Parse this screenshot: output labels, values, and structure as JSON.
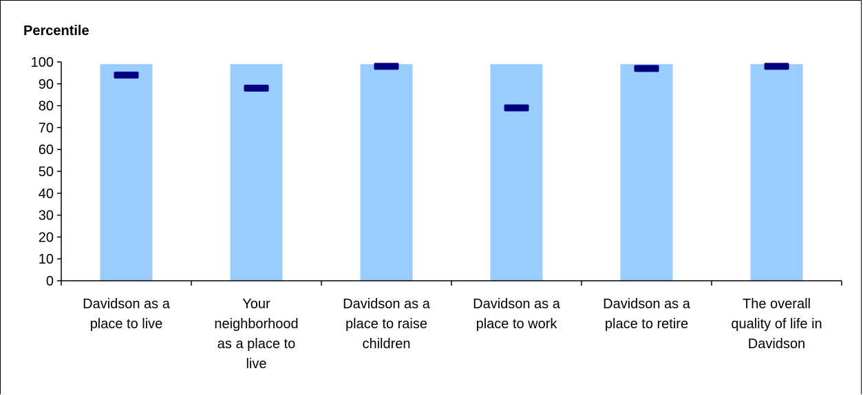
{
  "chart_data": {
    "type": "bar",
    "ylabel": "Percentile",
    "xlabel": "",
    "title": "",
    "ylim": [
      0,
      100
    ],
    "yticks": [
      "0",
      "10",
      "20",
      "30",
      "40",
      "50",
      "60",
      "70",
      "80",
      "90",
      "100"
    ],
    "categories": [
      [
        "Davidson as a",
        "place to live"
      ],
      [
        "Your",
        "neighborhood",
        "as a place to",
        "live"
      ],
      [
        "Davidson as a",
        "place to raise",
        "children"
      ],
      [
        "Davidson as a",
        "place to work"
      ],
      [
        "Davidson as a",
        "place to retire"
      ],
      [
        "The overall",
        "quality of life in",
        "Davidson"
      ]
    ],
    "series": [
      {
        "values": [
          99,
          99,
          99,
          99,
          99,
          99
        ],
        "color": "#99ccff",
        "style": "bar"
      },
      {
        "values": [
          94,
          88,
          98,
          79,
          97,
          98
        ],
        "color": "#000080",
        "style": "marker"
      }
    ],
    "grid": false,
    "legend": "none"
  }
}
